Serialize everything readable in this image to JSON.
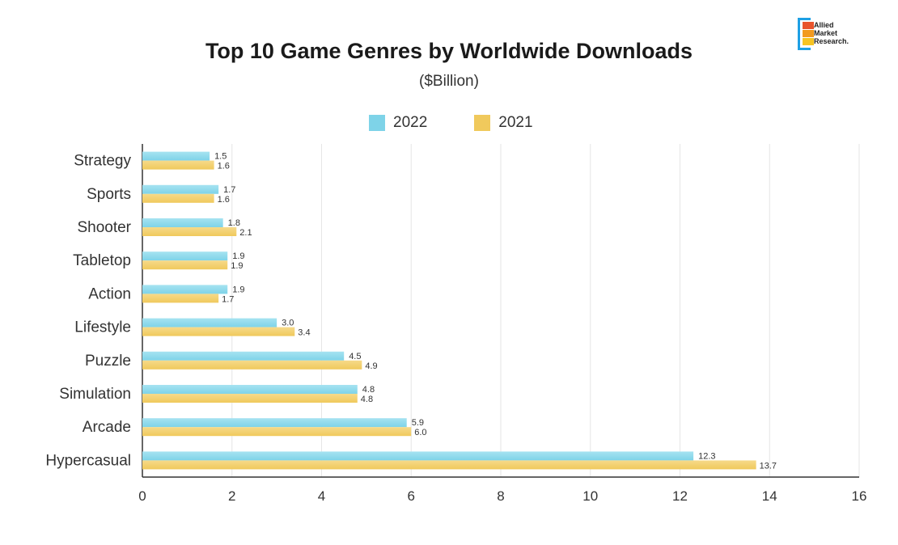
{
  "brand": {
    "line1": "Allied",
    "line2": "Market",
    "line3": "Research."
  },
  "colors": {
    "series_2022": "#7ed3e8",
    "series_2021": "#f0c95c",
    "grid": "#e6e6e6",
    "axis": "#333333"
  },
  "chart_data": {
    "type": "bar",
    "orientation": "horizontal",
    "title": "Top 10 Game Genres by Worldwide Downloads",
    "subtitle": "($Billion)",
    "categories": [
      "Strategy",
      "Sports",
      "Shooter",
      "Tabletop",
      "Action",
      "Lifestyle",
      "Puzzle",
      "Simulation",
      "Arcade",
      "Hypercasual"
    ],
    "series": [
      {
        "name": "2022",
        "values": [
          1.5,
          1.7,
          1.8,
          1.9,
          1.9,
          3.0,
          4.5,
          4.8,
          5.9,
          12.3
        ],
        "labels": [
          "1.5",
          "1.7",
          "1.8",
          "1.9",
          "1.9",
          "3.0",
          "4.5",
          "4.8",
          "5.9",
          "12.3"
        ]
      },
      {
        "name": "2021",
        "values": [
          1.6,
          1.6,
          2.1,
          1.9,
          1.7,
          3.4,
          4.9,
          4.8,
          6.0,
          13.7
        ],
        "labels": [
          "1.6",
          "1.6",
          "2.1",
          "1.9",
          "1.7",
          "3.4",
          "4.9",
          "4.8",
          "6.0",
          "13.7"
        ]
      }
    ],
    "xlim": [
      0,
      16
    ],
    "xticks": [
      "0",
      "2",
      "4",
      "6",
      "8",
      "10",
      "12",
      "14",
      "16"
    ],
    "grid": true,
    "legend_position": "top-center"
  }
}
